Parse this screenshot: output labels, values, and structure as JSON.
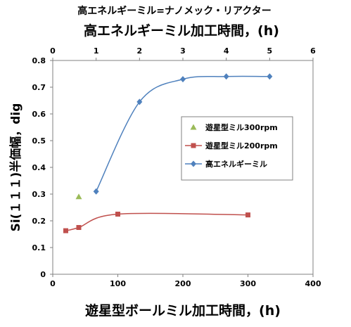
{
  "chart_data": {
    "type": "line",
    "heading": "高エネルギーミル=ナノメック・リアクター",
    "x_top_label": "高エネルギーミル加工時間，(h)",
    "xlabel": "遊星型ボールミル加工時間，(h)",
    "ylabel": "Si(１１１)半価幅，dig",
    "xlim": [
      0,
      400
    ],
    "x_top_lim": [
      0,
      6
    ],
    "ylim": [
      0,
      0.8
    ],
    "x_ticks": [
      0,
      100,
      200,
      300,
      400
    ],
    "x_top_ticks": [
      0,
      1,
      2,
      3,
      4,
      5,
      6
    ],
    "y_ticks": [
      0,
      0.1,
      0.2,
      0.3,
      0.4,
      0.5,
      0.6,
      0.7,
      0.8
    ],
    "y_tick_labels": [
      "0",
      "0.1",
      "0.2",
      "0.3",
      "0.4",
      "0.5",
      "0.6",
      "0.7",
      "0.8"
    ],
    "grid": false,
    "legend_position": "right",
    "series": [
      {
        "name": "遊星型ミル300rpm",
        "axis": "bottom",
        "color": "#9bbb59",
        "marker": "triangle",
        "line": false,
        "x": [
          40
        ],
        "y": [
          0.29
        ]
      },
      {
        "name": "遊星型ミル200rpm",
        "axis": "bottom",
        "color": "#c0504d",
        "marker": "square",
        "line": true,
        "x": [
          20,
          40,
          100,
          300
        ],
        "y": [
          0.163,
          0.175,
          0.225,
          0.222
        ]
      },
      {
        "name": "高エネルギーミル",
        "axis": "top",
        "color": "#4f81bd",
        "marker": "diamond",
        "line": true,
        "x": [
          1,
          2,
          3,
          4,
          5
        ],
        "y": [
          0.31,
          0.645,
          0.73,
          0.74,
          0.74
        ]
      }
    ]
  }
}
